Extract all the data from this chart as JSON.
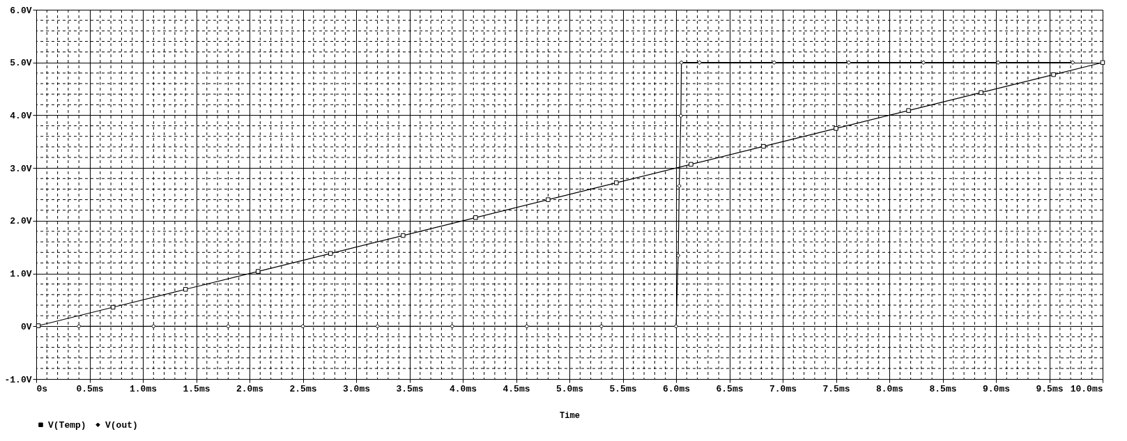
{
  "chart_data": {
    "type": "line",
    "xlabel": "Time",
    "xlim": [
      0,
      10
    ],
    "ylim": [
      -1,
      6
    ],
    "xticks": [
      {
        "value": 0,
        "label": "0s"
      },
      {
        "value": 0.5,
        "label": "0.5ms"
      },
      {
        "value": 1,
        "label": "1.0ms"
      },
      {
        "value": 1.5,
        "label": "1.5ms"
      },
      {
        "value": 2,
        "label": "2.0ms"
      },
      {
        "value": 2.5,
        "label": "2.5ms"
      },
      {
        "value": 3,
        "label": "3.0ms"
      },
      {
        "value": 3.5,
        "label": "3.5ms"
      },
      {
        "value": 4,
        "label": "4.0ms"
      },
      {
        "value": 4.5,
        "label": "4.5ms"
      },
      {
        "value": 5,
        "label": "5.0ms"
      },
      {
        "value": 5.5,
        "label": "5.5ms"
      },
      {
        "value": 6,
        "label": "6.0ms"
      },
      {
        "value": 6.5,
        "label": "6.5ms"
      },
      {
        "value": 7,
        "label": "7.0ms"
      },
      {
        "value": 7.5,
        "label": "7.5ms"
      },
      {
        "value": 8,
        "label": "8.0ms"
      },
      {
        "value": 8.5,
        "label": "8.5ms"
      },
      {
        "value": 9,
        "label": "9.0ms"
      },
      {
        "value": 9.5,
        "label": "9.5ms"
      },
      {
        "value": 10,
        "label": "10.0ms"
      }
    ],
    "yticks": [
      {
        "value": -1,
        "label": "-1.0V"
      },
      {
        "value": 0,
        "label": "0V"
      },
      {
        "value": 1,
        "label": "1.0V"
      },
      {
        "value": 2,
        "label": "2.0V"
      },
      {
        "value": 3,
        "label": "3.0V"
      },
      {
        "value": 4,
        "label": "4.0V"
      },
      {
        "value": 5,
        "label": "5.0V"
      },
      {
        "value": 6,
        "label": "6.0V"
      }
    ],
    "grid": true,
    "legend": "bottom left",
    "line_style": "solid",
    "series": [
      {
        "name": "V(Temp)",
        "color": "#000000",
        "marker": "square",
        "x": [
          0.02,
          0.72,
          1.4,
          2.08,
          2.76,
          3.44,
          4.12,
          4.8,
          5.44,
          6.14,
          6.82,
          7.5,
          8.18,
          8.86,
          9.54,
          10
        ],
        "values": [
          0.01,
          0.36,
          0.7,
          1.04,
          1.38,
          1.72,
          2.06,
          2.4,
          2.72,
          3.07,
          3.41,
          3.75,
          4.09,
          4.43,
          4.77,
          5.0
        ]
      },
      {
        "name": "V(out)",
        "color": "#000000",
        "marker": "diamond",
        "x": [
          0.4,
          1.1,
          1.8,
          2.5,
          3.2,
          3.9,
          4.6,
          5.3,
          6.0,
          6.02,
          6.03,
          6.045,
          6.05,
          6.22,
          6.92,
          7.62,
          8.32,
          9.02,
          9.72
        ],
        "values": [
          0,
          0,
          0,
          0,
          0,
          0,
          0,
          0,
          0,
          1.34,
          2.66,
          3.99,
          5.0,
          5.0,
          5.0,
          5.0,
          5.0,
          5.0,
          5.0
        ]
      }
    ]
  }
}
